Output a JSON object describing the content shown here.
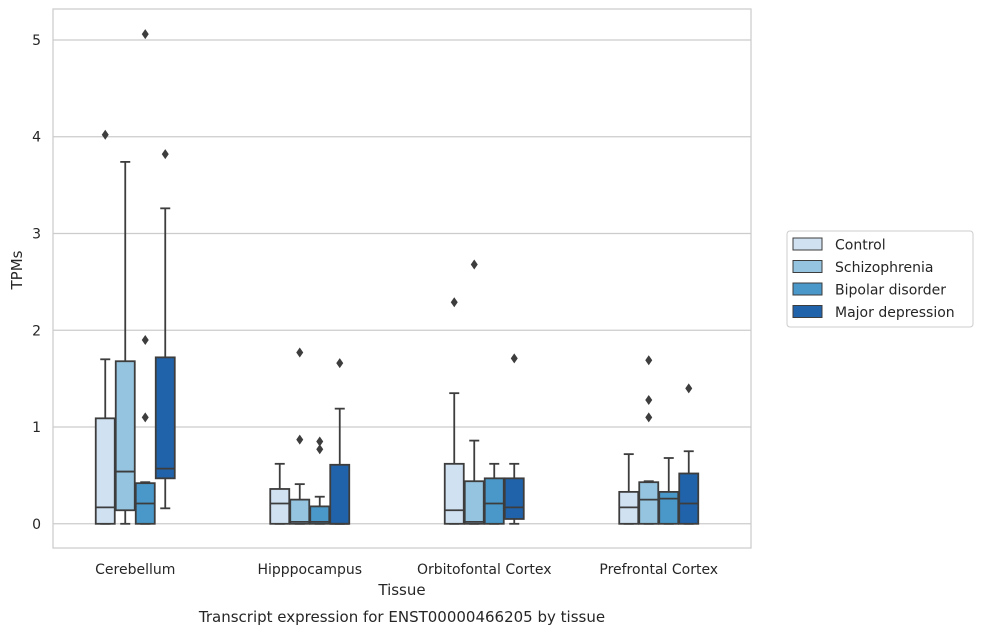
{
  "chart_data": {
    "type": "box",
    "caption": "Transcript expression for ENST00000466205 by tissue",
    "xlabel": "Tissue",
    "ylabel": "TPMs",
    "ylim": [
      -0.25,
      5.32
    ],
    "yticks": [
      0,
      1,
      2,
      3,
      4,
      5
    ],
    "grid": true,
    "legend_position": "right",
    "categories": [
      "Cerebellum",
      "Hipppocampus",
      "Orbitofontal Cortex",
      "Prefrontal Cortex"
    ],
    "series": [
      {
        "name": "Control",
        "color": "#d0e1f2",
        "boxes": [
          {
            "whislo": 0,
            "q1": 0,
            "med": 0.17,
            "q3": 1.09,
            "whishi": 1.7,
            "fliers": [
              4.02
            ]
          },
          {
            "whislo": 0,
            "q1": 0,
            "med": 0.21,
            "q3": 0.36,
            "whishi": 0.62,
            "fliers": []
          },
          {
            "whislo": 0,
            "q1": 0,
            "med": 0.14,
            "q3": 0.62,
            "whishi": 1.35,
            "fliers": [
              2.29
            ]
          },
          {
            "whislo": 0,
            "q1": 0,
            "med": 0.17,
            "q3": 0.33,
            "whishi": 0.72,
            "fliers": []
          }
        ]
      },
      {
        "name": "Schizophrenia",
        "color": "#94c4df",
        "boxes": [
          {
            "whislo": 0,
            "q1": 0.14,
            "med": 0.54,
            "q3": 1.68,
            "whishi": 3.74,
            "fliers": []
          },
          {
            "whislo": 0,
            "q1": 0,
            "med": 0.02,
            "q3": 0.25,
            "whishi": 0.41,
            "fliers": [
              0.87,
              1.77
            ]
          },
          {
            "whislo": 0,
            "q1": 0,
            "med": 0.02,
            "q3": 0.44,
            "whishi": 0.86,
            "fliers": [
              2.68
            ]
          },
          {
            "whislo": 0,
            "q1": 0,
            "med": 0.25,
            "q3": 0.43,
            "whishi": 0.44,
            "fliers": [
              1.1,
              1.28,
              1.69
            ]
          }
        ]
      },
      {
        "name": "Bipolar disorder",
        "color": "#4a98c9",
        "boxes": [
          {
            "whislo": 0,
            "q1": 0,
            "med": 0.21,
            "q3": 0.42,
            "whishi": 0.43,
            "fliers": [
              1.1,
              1.9,
              5.06
            ]
          },
          {
            "whislo": 0,
            "q1": 0,
            "med": 0.02,
            "q3": 0.18,
            "whishi": 0.28,
            "fliers": [
              0.77,
              0.85
            ]
          },
          {
            "whislo": 0,
            "q1": 0,
            "med": 0.21,
            "q3": 0.47,
            "whishi": 0.62,
            "fliers": []
          },
          {
            "whislo": 0,
            "q1": 0,
            "med": 0.26,
            "q3": 0.33,
            "whishi": 0.68,
            "fliers": []
          }
        ]
      },
      {
        "name": "Major depression",
        "color": "#2163aa",
        "boxes": [
          {
            "whislo": 0.16,
            "q1": 0.47,
            "med": 0.57,
            "q3": 1.72,
            "whishi": 3.26,
            "fliers": [
              3.82
            ]
          },
          {
            "whislo": 0,
            "q1": 0,
            "med": 0,
            "q3": 0.61,
            "whishi": 1.19,
            "fliers": [
              1.66
            ]
          },
          {
            "whislo": 0,
            "q1": 0.05,
            "med": 0.17,
            "q3": 0.47,
            "whishi": 0.62,
            "fliers": [
              1.71
            ]
          },
          {
            "whislo": 0,
            "q1": 0,
            "med": 0.21,
            "q3": 0.52,
            "whishi": 0.75,
            "fliers": [
              1.4
            ]
          }
        ]
      }
    ]
  }
}
